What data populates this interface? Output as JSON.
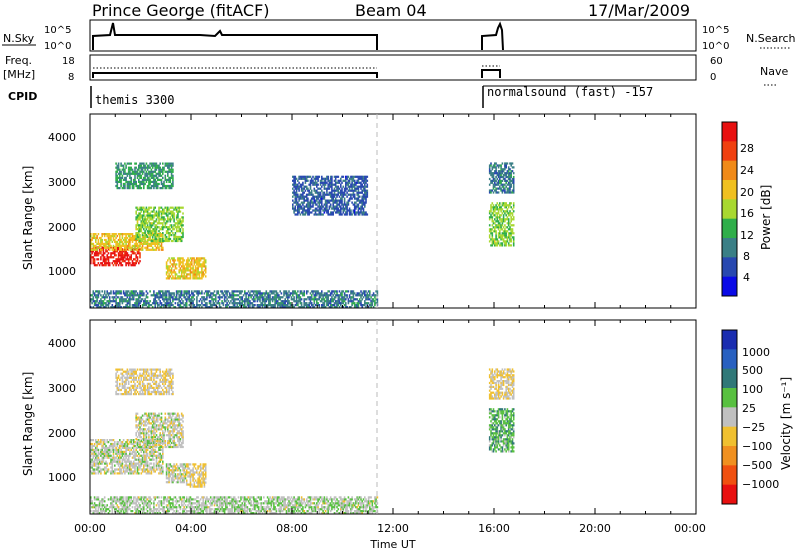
{
  "header": {
    "station": "Prince George (fitACF)",
    "beam": "Beam 04",
    "date": "17/Mar/2009"
  },
  "strips": {
    "nsky_label": "N.Sky",
    "nsky_ticks": [
      "10^5",
      "10^0"
    ],
    "nsearch_label": "N.Search",
    "freq_label": "Freq.",
    "freq_unit": "[MHz]",
    "freq_ticks": [
      "18",
      "8"
    ],
    "nave_ticks": [
      "60",
      "0"
    ],
    "nave_label": "Nave",
    "cpid_label": "CPID",
    "cpid_segments": [
      {
        "name": "themis 3300",
        "start_h": 0.0,
        "end_h": 11.4
      },
      {
        "name": "normalsound (fast) -157",
        "start_h": 15.8,
        "end_h": 24.0
      }
    ]
  },
  "axes": {
    "x_ticks": [
      "00:00",
      "04:00",
      "08:00",
      "12:00",
      "16:00",
      "20:00",
      "00:00"
    ],
    "x_label": "Time UT",
    "y_label": "Slant Range [km]",
    "y_ticks": [
      "1000",
      "2000",
      "3000",
      "4000"
    ]
  },
  "colorbars": {
    "power": {
      "label": "Power [dB]",
      "ticks": [
        "4",
        "8",
        "12",
        "16",
        "20",
        "24",
        "28"
      ],
      "colors": [
        "#0a0ae6",
        "#2848b0",
        "#3a7f86",
        "#2fae4a",
        "#a8d830",
        "#f0c020",
        "#f08a18",
        "#f04010",
        "#e81010"
      ]
    },
    "velocity": {
      "label": "Velocity [m s⁻¹]",
      "ticks": [
        "1000",
        "500",
        "100",
        "25",
        "−25",
        "−100",
        "−500",
        "−1000"
      ],
      "colors": [
        "#1a2db0",
        "#2860c0",
        "#307878",
        "#58c040",
        "#c0c0c0",
        "#f0c030",
        "#f09020",
        "#f05010",
        "#e81010"
      ]
    }
  },
  "chart_data": [
    {
      "type": "heatmap",
      "title": "Power",
      "xlabel": "Time UT",
      "ylabel": "Slant Range [km]",
      "xlim_hours": [
        0,
        24
      ],
      "ylim_km": [
        200,
        4600
      ],
      "colorbar_range": [
        0,
        30
      ],
      "regions": [
        {
          "t": [
            0.0,
            2.0
          ],
          "r": [
            1150,
            1600
          ],
          "value": 28
        },
        {
          "t": [
            0.0,
            2.9
          ],
          "r": [
            1500,
            1900
          ],
          "value": 18
        },
        {
          "t": [
            1.8,
            3.7
          ],
          "r": [
            1700,
            2500
          ],
          "value": 14
        },
        {
          "t": [
            3.0,
            4.6
          ],
          "r": [
            850,
            1350
          ],
          "value": 18
        },
        {
          "t": [
            1.0,
            3.3
          ],
          "r": [
            2900,
            3500
          ],
          "value": 10
        },
        {
          "t": [
            0.0,
            11.4
          ],
          "r": [
            200,
            600
          ],
          "value": 8
        },
        {
          "t": [
            8.0,
            11.0
          ],
          "r": [
            2300,
            3200
          ],
          "value": 6
        },
        {
          "t": [
            15.8,
            16.8
          ],
          "r": [
            1600,
            2600
          ],
          "value": 14
        },
        {
          "t": [
            15.8,
            16.8
          ],
          "r": [
            2800,
            3500
          ],
          "value": 8
        }
      ]
    },
    {
      "type": "heatmap",
      "title": "Velocity",
      "xlabel": "Time UT",
      "ylabel": "Slant Range [km]",
      "xlim_hours": [
        0,
        24
      ],
      "ylim_km": [
        200,
        4600
      ],
      "colorbar_range": [
        -1000,
        1000
      ],
      "regions": [
        {
          "t": [
            0.0,
            2.9
          ],
          "r": [
            1100,
            1900
          ],
          "value": 0
        },
        {
          "t": [
            1.8,
            3.7
          ],
          "r": [
            1700,
            2500
          ],
          "value": 0
        },
        {
          "t": [
            3.0,
            3.8
          ],
          "r": [
            900,
            1350
          ],
          "value": 0
        },
        {
          "t": [
            3.8,
            4.6
          ],
          "r": [
            800,
            1350
          ],
          "value": -150
        },
        {
          "t": [
            1.0,
            3.3
          ],
          "r": [
            2900,
            3500
          ],
          "value": -80
        },
        {
          "t": [
            0.0,
            11.4
          ],
          "r": [
            200,
            600
          ],
          "value": 60
        },
        {
          "t": [
            15.8,
            16.8
          ],
          "r": [
            1600,
            2600
          ],
          "value": 250
        },
        {
          "t": [
            15.8,
            16.8
          ],
          "r": [
            2800,
            3500
          ],
          "value": -80
        }
      ]
    }
  ]
}
